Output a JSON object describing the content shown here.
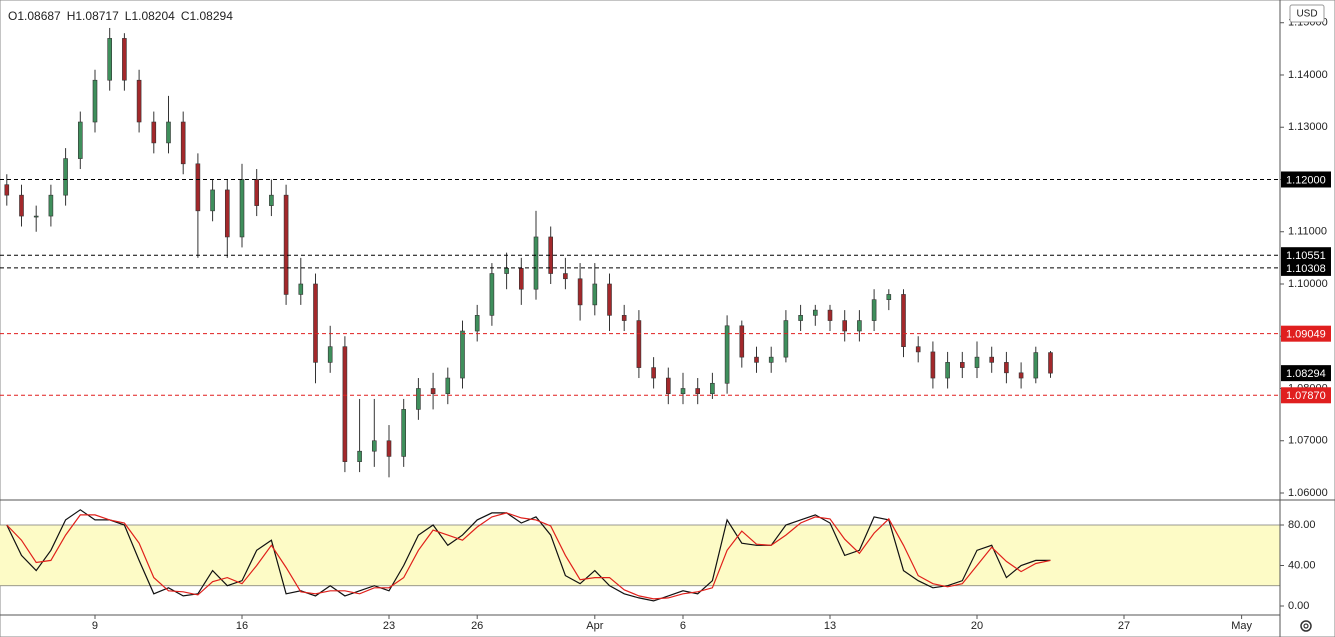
{
  "chart_data": [
    {
      "type": "candlestick",
      "ohlc": [
        "O1.08687",
        "H1.08717",
        "L1.08204",
        "C1.08294"
      ],
      "currency": "USD",
      "x": [
        -3,
        -2.5,
        -2,
        -1.5,
        -1,
        -0.5,
        0,
        0.5,
        1,
        1.5,
        2,
        2.5,
        3,
        3.5,
        4,
        4.5,
        5,
        5.5,
        6,
        6.5,
        7,
        7.5,
        8,
        8.5,
        9,
        9.5,
        10,
        10.5,
        11,
        11.5,
        12,
        12.5,
        13,
        13.5,
        14,
        14.5,
        15,
        15.5,
        16,
        16.5,
        17,
        17.5,
        18,
        18.5,
        19,
        19.5,
        20,
        20.5,
        21,
        21.5,
        22,
        22.5,
        23,
        23.5,
        24,
        24.5,
        25,
        25.5,
        26,
        26.5,
        27,
        27.5,
        28,
        28.5,
        29,
        29.5,
        30,
        30.5,
        31,
        31.5,
        32,
        32.5
      ],
      "open": [
        1.119,
        1.117,
        1.113,
        1.113,
        1.117,
        1.124,
        1.131,
        1.139,
        1.147,
        1.139,
        1.131,
        1.127,
        1.131,
        1.123,
        1.114,
        1.118,
        1.109,
        1.12,
        1.115,
        1.117,
        1.098,
        1.1,
        1.085,
        1.088,
        1.066,
        1.068,
        1.07,
        1.067,
        1.076,
        1.08,
        1.079,
        1.082,
        1.091,
        1.094,
        1.102,
        1.103,
        1.099,
        1.109,
        1.102,
        1.101,
        1.096,
        1.1,
        1.094,
        1.093,
        1.084,
        1.082,
        1.079,
        1.08,
        1.079,
        1.081,
        1.092,
        1.086,
        1.085,
        1.086,
        1.093,
        1.094,
        1.095,
        1.093,
        1.091,
        1.093,
        1.097,
        1.098,
        1.088,
        1.087,
        1.082,
        1.085,
        1.084,
        1.086,
        1.085,
        1.083,
        1.082,
        1.08687
      ],
      "high": [
        1.121,
        1.119,
        1.115,
        1.119,
        1.126,
        1.133,
        1.141,
        1.149,
        1.148,
        1.141,
        1.133,
        1.136,
        1.133,
        1.125,
        1.12,
        1.12,
        1.123,
        1.122,
        1.12,
        1.119,
        1.105,
        1.102,
        1.092,
        1.09,
        1.078,
        1.078,
        1.073,
        1.078,
        1.082,
        1.083,
        1.084,
        1.093,
        1.096,
        1.104,
        1.106,
        1.105,
        1.114,
        1.111,
        1.105,
        1.104,
        1.104,
        1.102,
        1.096,
        1.095,
        1.086,
        1.084,
        1.083,
        1.082,
        1.083,
        1.094,
        1.093,
        1.088,
        1.088,
        1.095,
        1.096,
        1.096,
        1.096,
        1.095,
        1.095,
        1.099,
        1.099,
        1.099,
        1.09,
        1.089,
        1.087,
        1.087,
        1.089,
        1.088,
        1.087,
        1.085,
        1.088,
        1.08717
      ],
      "low": [
        1.115,
        1.111,
        1.11,
        1.111,
        1.115,
        1.122,
        1.129,
        1.137,
        1.137,
        1.129,
        1.125,
        1.125,
        1.121,
        1.105,
        1.112,
        1.105,
        1.107,
        1.113,
        1.113,
        1.096,
        1.096,
        1.081,
        1.083,
        1.064,
        1.064,
        1.065,
        1.063,
        1.065,
        1.074,
        1.076,
        1.077,
        1.08,
        1.089,
        1.092,
        1.099,
        1.096,
        1.097,
        1.1,
        1.099,
        1.093,
        1.094,
        1.091,
        1.091,
        1.082,
        1.08,
        1.077,
        1.077,
        1.077,
        1.078,
        1.079,
        1.084,
        1.083,
        1.083,
        1.085,
        1.091,
        1.092,
        1.091,
        1.089,
        1.089,
        1.091,
        1.095,
        1.086,
        1.085,
        1.08,
        1.08,
        1.082,
        1.082,
        1.083,
        1.081,
        1.08,
        1.081,
        1.08204
      ],
      "close": [
        1.117,
        1.113,
        1.113,
        1.117,
        1.124,
        1.131,
        1.139,
        1.147,
        1.139,
        1.131,
        1.127,
        1.131,
        1.123,
        1.114,
        1.118,
        1.109,
        1.12,
        1.115,
        1.117,
        1.098,
        1.1,
        1.085,
        1.088,
        1.066,
        1.068,
        1.07,
        1.067,
        1.076,
        1.08,
        1.079,
        1.082,
        1.091,
        1.094,
        1.102,
        1.103,
        1.099,
        1.109,
        1.102,
        1.101,
        1.096,
        1.1,
        1.094,
        1.093,
        1.084,
        1.082,
        1.079,
        1.08,
        1.079,
        1.081,
        1.092,
        1.086,
        1.085,
        1.086,
        1.093,
        1.094,
        1.095,
        1.093,
        1.091,
        1.093,
        1.097,
        1.098,
        1.088,
        1.087,
        1.082,
        1.085,
        1.084,
        1.086,
        1.085,
        1.083,
        1.082,
        1.08687,
        1.08294
      ],
      "up_color": "#3f8f5c",
      "down_color": "#a3282b",
      "xlim": [
        -3.231,
        40.306
      ],
      "ylim": [
        1.05866,
        1.15435
      ],
      "yticks": [
        {
          "value": 1.06,
          "label": "1.06000"
        },
        {
          "value": 1.07,
          "label": "1.07000"
        },
        {
          "value": 1.08,
          "label": "1.08000"
        },
        {
          "value": 1.09,
          "label": "1.09000"
        },
        {
          "value": 1.1,
          "label": "1.10000"
        },
        {
          "value": 1.11,
          "label": "1.11000"
        },
        {
          "value": 1.12,
          "label": "1.12000"
        },
        {
          "value": 1.13,
          "label": "1.13000"
        },
        {
          "value": 1.14,
          "label": "1.14000"
        },
        {
          "value": 1.15,
          "label": "1.15000"
        }
      ],
      "levels": [
        {
          "value": 1.12,
          "label": "1.12000",
          "color": "#000000"
        },
        {
          "value": 1.10551,
          "label": "1.10551",
          "color": "#000000"
        },
        {
          "value": 1.10308,
          "label": "1.10308",
          "color": "#000000"
        },
        {
          "value": 1.09049,
          "label": "1.09049",
          "color": "#e01f1f"
        },
        {
          "value": 1.0787,
          "label": "1.07870",
          "color": "#e01f1f"
        }
      ],
      "last_price": {
        "value": 1.08294,
        "label": "1.08294",
        "color": "#000000"
      }
    },
    {
      "type": "line",
      "x": [
        -3,
        -2.5,
        -2,
        -1.5,
        -1,
        -0.5,
        0,
        0.5,
        1,
        1.5,
        2,
        2.5,
        3,
        3.5,
        4,
        4.5,
        5,
        5.5,
        6,
        6.5,
        7,
        7.5,
        8,
        8.5,
        9,
        9.5,
        10,
        10.5,
        11,
        11.5,
        12,
        12.5,
        13,
        13.5,
        14,
        14.5,
        15,
        15.5,
        16,
        16.5,
        17,
        17.5,
        18,
        18.5,
        19,
        19.5,
        20,
        20.5,
        21,
        21.5,
        22,
        22.5,
        23,
        23.5,
        24,
        24.5,
        25,
        25.5,
        26,
        26.5,
        27,
        27.5,
        28,
        28.5,
        29,
        29.5,
        30,
        30.5,
        31,
        31.5,
        32,
        32.5
      ],
      "series": [
        {
          "color": "#111111",
          "values": [
            80,
            50,
            35,
            55,
            85,
            95,
            85,
            85,
            80,
            45,
            12,
            18,
            10,
            12,
            35,
            20,
            25,
            55,
            65,
            12,
            15,
            10,
            20,
            10,
            15,
            20,
            15,
            40,
            70,
            80,
            60,
            70,
            85,
            92,
            92,
            82,
            88,
            70,
            30,
            22,
            35,
            20,
            12,
            8,
            5,
            10,
            15,
            12,
            25,
            85,
            62,
            60,
            60,
            80,
            85,
            90,
            82,
            50,
            55,
            88,
            85,
            35,
            25,
            18,
            20,
            25,
            55,
            60,
            28,
            40,
            45,
            45
          ]
        },
        {
          "color": "#e0201b",
          "values": [
            80,
            65,
            43,
            45,
            70,
            90,
            90,
            85,
            82,
            62,
            28,
            15,
            14,
            11,
            24,
            28,
            22,
            40,
            60,
            38,
            14,
            12,
            15,
            15,
            12,
            18,
            18,
            28,
            55,
            75,
            70,
            65,
            78,
            88,
            92,
            87,
            85,
            79,
            50,
            26,
            28,
            28,
            16,
            10,
            7,
            8,
            12,
            14,
            18,
            55,
            74,
            61,
            60,
            70,
            82,
            88,
            86,
            66,
            52,
            72,
            86,
            60,
            30,
            22,
            19,
            22,
            40,
            58,
            44,
            34,
            42,
            45
          ]
        }
      ],
      "band": [
        20,
        80
      ],
      "band_color": "#fdfbc6",
      "xlim": [
        -3.231,
        40.306
      ],
      "ylim": [
        -8.9,
        104.7
      ],
      "yticks": [
        {
          "value": 0,
          "label": "0.00"
        },
        {
          "value": 40,
          "label": "40.00"
        },
        {
          "value": 80,
          "label": "80.00"
        }
      ],
      "xticks": [
        {
          "value": 0,
          "label": "9"
        },
        {
          "value": 5,
          "label": "16"
        },
        {
          "value": 10,
          "label": "23"
        },
        {
          "value": 13,
          "label": "26"
        },
        {
          "value": 17,
          "label": "Apr"
        },
        {
          "value": 20,
          "label": "6"
        },
        {
          "value": 25,
          "label": "13"
        },
        {
          "value": 30,
          "label": "20"
        },
        {
          "value": 35,
          "label": "27"
        },
        {
          "value": 39,
          "label": "May"
        }
      ]
    }
  ]
}
